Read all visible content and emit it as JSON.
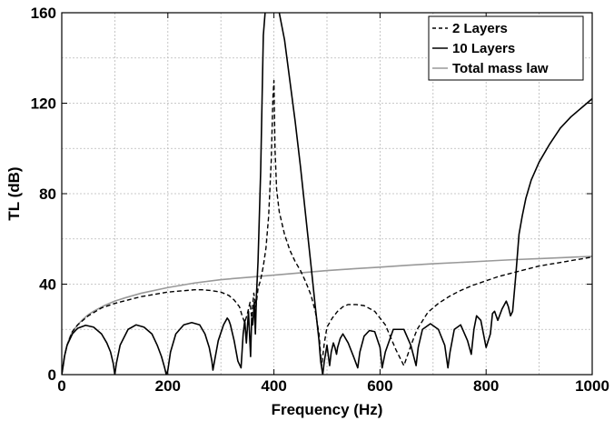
{
  "chart_data": {
    "type": "line",
    "title": "",
    "xlabel": "Frequency (Hz)",
    "ylabel": "TL (dB)",
    "xlim": [
      0,
      1000
    ],
    "ylim": [
      0,
      160
    ],
    "xticks": [
      "0",
      "200",
      "400",
      "600",
      "800",
      "1000"
    ],
    "yticks": [
      "0",
      "40",
      "80",
      "120",
      "160"
    ],
    "grid": true,
    "legend_position": "top-right",
    "series": [
      {
        "name": "2 Layers",
        "color": "#000000",
        "style": "dashed",
        "x": [
          0,
          5,
          10,
          20,
          30,
          50,
          75,
          100,
          125,
          150,
          175,
          200,
          225,
          250,
          265,
          280,
          300,
          315,
          325,
          335,
          340,
          345,
          350,
          355,
          358,
          362,
          366,
          370,
          375,
          380,
          385,
          390,
          395,
          398,
          400,
          402,
          405,
          410,
          420,
          430,
          440,
          450,
          460,
          470,
          478,
          485,
          488,
          490,
          495,
          500,
          510,
          520,
          530,
          540,
          555,
          570,
          590,
          610,
          630,
          645,
          660,
          670,
          690,
          710,
          730,
          750,
          775,
          800,
          825,
          850,
          875,
          900,
          925,
          950,
          975,
          1000
        ],
        "y": [
          0,
          8,
          13,
          19,
          22,
          26,
          29.5,
          31.5,
          33,
          34.5,
          35.5,
          36.5,
          37,
          37.5,
          37.5,
          37.2,
          36.5,
          35,
          33,
          30,
          26,
          23,
          27,
          32,
          25,
          36,
          30,
          38,
          42,
          48,
          56,
          70,
          95,
          122,
          130,
          100,
          82,
          72,
          62,
          55,
          50,
          46,
          41,
          35,
          28,
          18,
          9,
          4,
          14,
          21,
          25,
          28,
          30,
          31,
          31,
          30.5,
          28,
          22,
          11,
          4,
          14,
          20,
          27.5,
          31.5,
          34.5,
          37,
          39.5,
          41.5,
          43.5,
          45,
          46.5,
          48,
          49,
          50,
          51,
          52
        ]
      },
      {
        "name": "10 Layers",
        "color": "#000000",
        "style": "solid",
        "x": [
          0,
          5,
          10,
          20,
          30,
          45,
          60,
          75,
          85,
          92,
          97,
          100,
          103,
          110,
          125,
          140,
          155,
          170,
          180,
          188,
          194,
          197,
          200,
          205,
          215,
          230,
          245,
          260,
          270,
          278,
          283,
          285,
          288,
          295,
          305,
          312,
          315,
          318,
          325,
          332,
          338,
          342,
          345,
          348,
          352,
          356,
          358,
          360,
          363,
          365,
          367,
          370,
          375,
          380,
          385,
          392,
          395,
          400,
          405,
          410,
          420,
          430,
          440,
          450,
          460,
          470,
          478,
          485,
          488,
          490,
          492,
          495,
          500,
          505,
          508,
          512,
          515,
          518,
          520,
          525,
          530,
          540,
          550,
          558,
          562,
          570,
          580,
          590,
          600,
          604,
          610,
          625,
          645,
          658,
          668,
          672,
          680,
          695,
          710,
          722,
          728,
          732,
          740,
          752,
          765,
          772,
          777,
          782,
          790,
          800,
          808,
          812,
          816,
          822,
          830,
          838,
          842,
          846,
          850,
          856,
          862,
          868,
          875,
          885,
          900,
          920,
          940,
          960,
          980,
          1000
        ],
        "y": [
          0,
          8,
          13,
          18,
          20.5,
          21.8,
          21,
          18,
          14,
          10,
          5,
          0,
          5,
          13,
          20,
          22,
          21,
          18,
          13,
          8,
          3,
          0,
          2,
          10,
          18,
          22,
          23,
          22,
          18,
          12,
          6,
          2,
          6,
          15,
          22,
          25,
          24,
          22,
          15,
          6,
          3,
          18,
          24,
          14,
          28,
          8,
          25,
          22,
          32,
          18,
          35,
          50,
          90,
          150,
          165,
          165,
          165,
          165,
          165,
          160,
          148,
          130,
          112,
          92,
          70,
          48,
          30,
          15,
          6,
          3,
          0,
          6,
          13,
          4,
          10,
          14,
          12,
          9,
          12,
          16,
          18,
          14,
          8,
          3,
          10,
          17,
          19.5,
          19,
          12,
          3,
          10,
          20,
          20,
          13,
          4,
          12,
          20,
          22.5,
          20,
          13,
          3,
          10,
          20,
          22,
          15,
          9,
          20,
          26,
          24,
          12,
          18,
          27,
          28,
          24,
          29,
          32.5,
          30,
          26,
          28,
          44,
          62,
          70,
          78,
          86,
          94,
          102,
          109,
          114,
          118,
          122
        ]
      },
      {
        "name": "Total mass law",
        "color": "#999999",
        "style": "solid",
        "x": [
          0,
          3,
          6,
          10,
          15,
          20,
          30,
          40,
          50,
          60,
          80,
          100,
          120,
          150,
          200,
          250,
          300,
          350,
          400,
          450,
          500,
          550,
          600,
          650,
          700,
          750,
          800,
          850,
          900,
          950,
          1000
        ],
        "y": [
          0,
          4,
          9,
          13,
          16.5,
          19,
          22,
          24.5,
          26.5,
          28,
          30.5,
          32.5,
          34,
          36,
          38.5,
          40.5,
          42,
          43,
          44,
          45,
          46,
          46.8,
          47.5,
          48.3,
          49,
          49.6,
          50.2,
          50.8,
          51.3,
          51.8,
          52.3
        ]
      }
    ]
  }
}
